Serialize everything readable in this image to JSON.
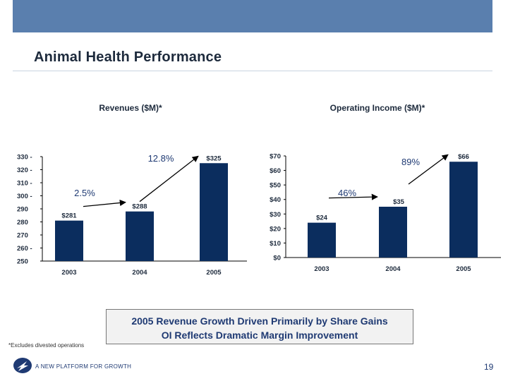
{
  "header": {
    "title": "Animal Health Performance"
  },
  "chart_data": [
    {
      "type": "bar",
      "title": "Revenues ($M)*",
      "categories": [
        "2003",
        "2004",
        "2005"
      ],
      "values": [
        281,
        288,
        325
      ],
      "data_labels": [
        "$281",
        "$288",
        "$325"
      ],
      "ylim": [
        250,
        330
      ],
      "yticks": [
        {
          "value": 330,
          "label": "330 -"
        },
        {
          "value": 320,
          "label": "320 -"
        },
        {
          "value": 310,
          "label": "310 -"
        },
        {
          "value": 300,
          "label": "300 -"
        },
        {
          "value": 290,
          "label": "290"
        },
        {
          "value": 280,
          "label": "280"
        },
        {
          "value": 270,
          "label": "270"
        },
        {
          "value": 260,
          "label": "260 -"
        },
        {
          "value": 250,
          "label": "250"
        }
      ],
      "growth_labels": [
        "2.5%",
        "12.8%"
      ],
      "bar_color": "#0b2d5e",
      "annotation_color": "#1f3a73"
    },
    {
      "type": "bar",
      "title": "Operating Income ($M)*",
      "categories": [
        "2003",
        "2004",
        "2005"
      ],
      "values": [
        24,
        35,
        66
      ],
      "data_labels": [
        "$24",
        "$35",
        "$66"
      ],
      "ylim": [
        0,
        70
      ],
      "yticks": [
        {
          "value": 70,
          "label": "$70"
        },
        {
          "value": 60,
          "label": "$60"
        },
        {
          "value": 50,
          "label": "$50"
        },
        {
          "value": 40,
          "label": "$40"
        },
        {
          "value": 30,
          "label": "$30"
        },
        {
          "value": 20,
          "label": "$20"
        },
        {
          "value": 10,
          "label": "$10"
        },
        {
          "value": 0,
          "label": "$0"
        }
      ],
      "growth_labels": [
        "46%",
        "89%"
      ],
      "bar_color": "#0b2d5e",
      "annotation_color": "#1f3a73"
    }
  ],
  "callout": {
    "line1": "2005 Revenue Growth Driven Primarily by Share Gains",
    "line2": "OI Reflects Dramatic Margin Improvement"
  },
  "footnote": "*Excludes divested operations",
  "footer": {
    "tagline": "A NEW PLATFORM FOR GROWTH",
    "page_number": "19"
  },
  "colors": {
    "header_bar": "#5a7fae",
    "bars": "#0b2d5e",
    "text_accent": "#1f3a73"
  }
}
